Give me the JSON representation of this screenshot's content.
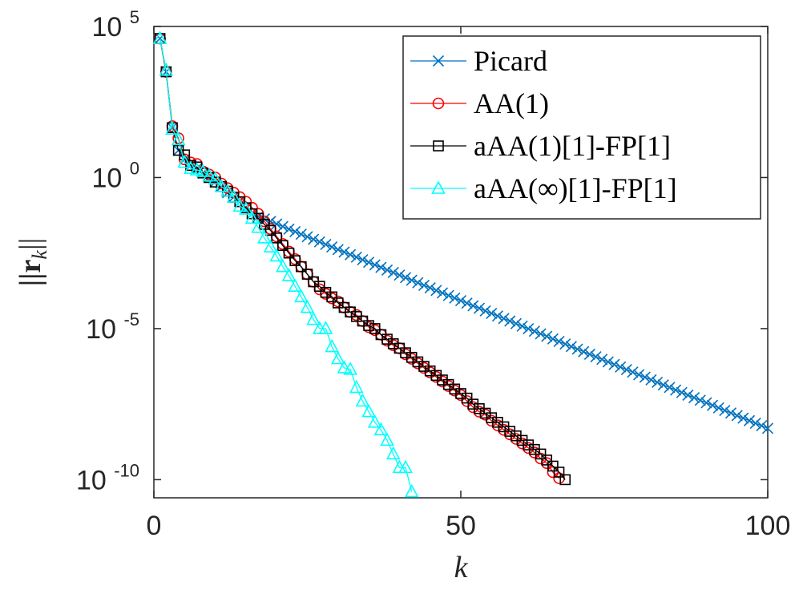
{
  "chart_data": {
    "type": "line",
    "title": "",
    "xlabel": "k",
    "ylabel": "||r_k||",
    "ylabel_main": "||r",
    "ylabel_sub": "k",
    "ylabel_close": "||",
    "yscale": "log",
    "xlim": [
      0,
      100
    ],
    "ylim_log10": [
      -10.6,
      5
    ],
    "xticks": [
      0,
      50,
      100
    ],
    "xtick_labels": [
      "0",
      "50",
      "100"
    ],
    "yticks_log10": [
      5,
      0,
      -5,
      -10
    ],
    "ytick_labels": [
      {
        "base": "10",
        "exp": "5"
      },
      {
        "base": "10",
        "exp": "0"
      },
      {
        "base": "10",
        "exp": "-5"
      },
      {
        "base": "10",
        "exp": "-10"
      }
    ],
    "legend_position": "top-right",
    "series": [
      {
        "name": "Picard",
        "color": "#0072BD",
        "marker": "x",
        "x": [
          1,
          2,
          3,
          4,
          5,
          6,
          7,
          8,
          9,
          10,
          11,
          12,
          13,
          14,
          15,
          16
        ],
        "log10y": [
          4.6,
          3.5,
          1.65,
          0.9,
          0.6,
          0.4,
          0.3,
          0.15,
          0.0,
          -0.15,
          -0.3,
          -0.5,
          -0.65,
          -0.8,
          -1.0,
          -1.2
        ],
        "tail_from": [
          16,
          -1.2
        ],
        "tail_to": [
          100,
          -8.3
        ]
      },
      {
        "name": "AA(1)",
        "color": "#FF0000",
        "marker": "o",
        "x": [
          1,
          2,
          3,
          4,
          5,
          6,
          7,
          8,
          9,
          10,
          11,
          12,
          13,
          14,
          15,
          16,
          17,
          18,
          19,
          20,
          21,
          22,
          23,
          24,
          25,
          26,
          27,
          28,
          29,
          30,
          31,
          32,
          33,
          34,
          35,
          36,
          37,
          38,
          39,
          40,
          41,
          42,
          43,
          44,
          45,
          46,
          47,
          48,
          49,
          50,
          51,
          52,
          53,
          54,
          55,
          56,
          57,
          58,
          59,
          60,
          61,
          62,
          63,
          64,
          65,
          66
        ],
        "log10y": [
          4.6,
          3.5,
          1.7,
          1.3,
          0.6,
          0.5,
          0.45,
          0.2,
          0.1,
          0.0,
          -0.2,
          -0.35,
          -0.5,
          -0.65,
          -0.8,
          -1.0,
          -1.2,
          -1.45,
          -1.7,
          -1.95,
          -2.2,
          -2.45,
          -2.7,
          -2.95,
          -3.2,
          -3.45,
          -3.7,
          -3.85,
          -4.0,
          -4.1,
          -4.3,
          -4.45,
          -4.55,
          -4.75,
          -4.95,
          -5.05,
          -5.2,
          -5.4,
          -5.55,
          -5.65,
          -5.85,
          -6.0,
          -6.15,
          -6.3,
          -6.45,
          -6.6,
          -6.75,
          -6.9,
          -7.05,
          -7.2,
          -7.4,
          -7.6,
          -7.75,
          -7.85,
          -8.05,
          -8.2,
          -8.35,
          -8.5,
          -8.65,
          -8.8,
          -8.95,
          -9.1,
          -9.3,
          -9.45,
          -9.75,
          -9.95
        ]
      },
      {
        "name": "aAA(1)[1]-FP[1]",
        "color": "#000000",
        "marker": "s",
        "x": [
          1,
          2,
          3,
          4,
          5,
          6,
          7,
          8,
          9,
          10,
          11,
          12,
          13,
          14,
          15,
          16,
          17,
          18,
          19,
          20,
          21,
          22,
          23,
          24,
          25,
          26,
          27,
          28,
          29,
          30,
          31,
          32,
          33,
          34,
          35,
          36,
          37,
          38,
          39,
          40,
          41,
          42,
          43,
          44,
          45,
          46,
          47,
          48,
          49,
          50,
          51,
          52,
          53,
          54,
          55,
          56,
          57,
          58,
          59,
          60,
          61,
          62,
          63,
          64,
          65,
          66,
          67
        ],
        "log10y": [
          4.6,
          3.5,
          1.65,
          0.9,
          0.75,
          0.4,
          0.35,
          0.15,
          0.0,
          -0.15,
          -0.3,
          -0.45,
          -0.65,
          -0.8,
          -1.0,
          -1.2,
          -1.35,
          -1.55,
          -1.75,
          -2.0,
          -2.25,
          -2.5,
          -2.75,
          -2.95,
          -3.2,
          -3.45,
          -3.6,
          -3.8,
          -3.95,
          -4.15,
          -4.3,
          -4.45,
          -4.6,
          -4.75,
          -4.9,
          -5.0,
          -5.2,
          -5.35,
          -5.5,
          -5.65,
          -5.8,
          -5.95,
          -6.1,
          -6.25,
          -6.4,
          -6.55,
          -6.7,
          -6.85,
          -7.0,
          -7.15,
          -7.3,
          -7.5,
          -7.65,
          -7.8,
          -7.95,
          -8.1,
          -8.25,
          -8.4,
          -8.55,
          -8.7,
          -8.85,
          -9.0,
          -9.15,
          -9.35,
          -9.55,
          -9.75,
          -10.0
        ]
      },
      {
        "name": "aAA(∞)[1]-FP[1]",
        "color": "#00FFFF",
        "marker": "^",
        "x": [
          1,
          2,
          3,
          4,
          5,
          6,
          7,
          8,
          9,
          10,
          11,
          12,
          13,
          14,
          15,
          16,
          17,
          18,
          19,
          20,
          21,
          22,
          23,
          24,
          25,
          26,
          27,
          28,
          29,
          30,
          31,
          32,
          33,
          34,
          35,
          36,
          37,
          38,
          39,
          40,
          41,
          42
        ],
        "log10y": [
          4.6,
          3.55,
          1.6,
          1.25,
          0.5,
          0.3,
          0.25,
          0.2,
          0.05,
          -0.05,
          -0.3,
          -0.45,
          -0.65,
          -0.95,
          -1.05,
          -1.35,
          -1.65,
          -2.0,
          -2.3,
          -2.6,
          -2.95,
          -3.25,
          -3.6,
          -3.95,
          -4.3,
          -4.7,
          -5.0,
          -5.0,
          -5.6,
          -6.0,
          -6.3,
          -6.35,
          -6.95,
          -7.4,
          -7.75,
          -8.1,
          -8.35,
          -8.7,
          -9.15,
          -9.6,
          -9.6,
          -10.4
        ]
      }
    ]
  }
}
